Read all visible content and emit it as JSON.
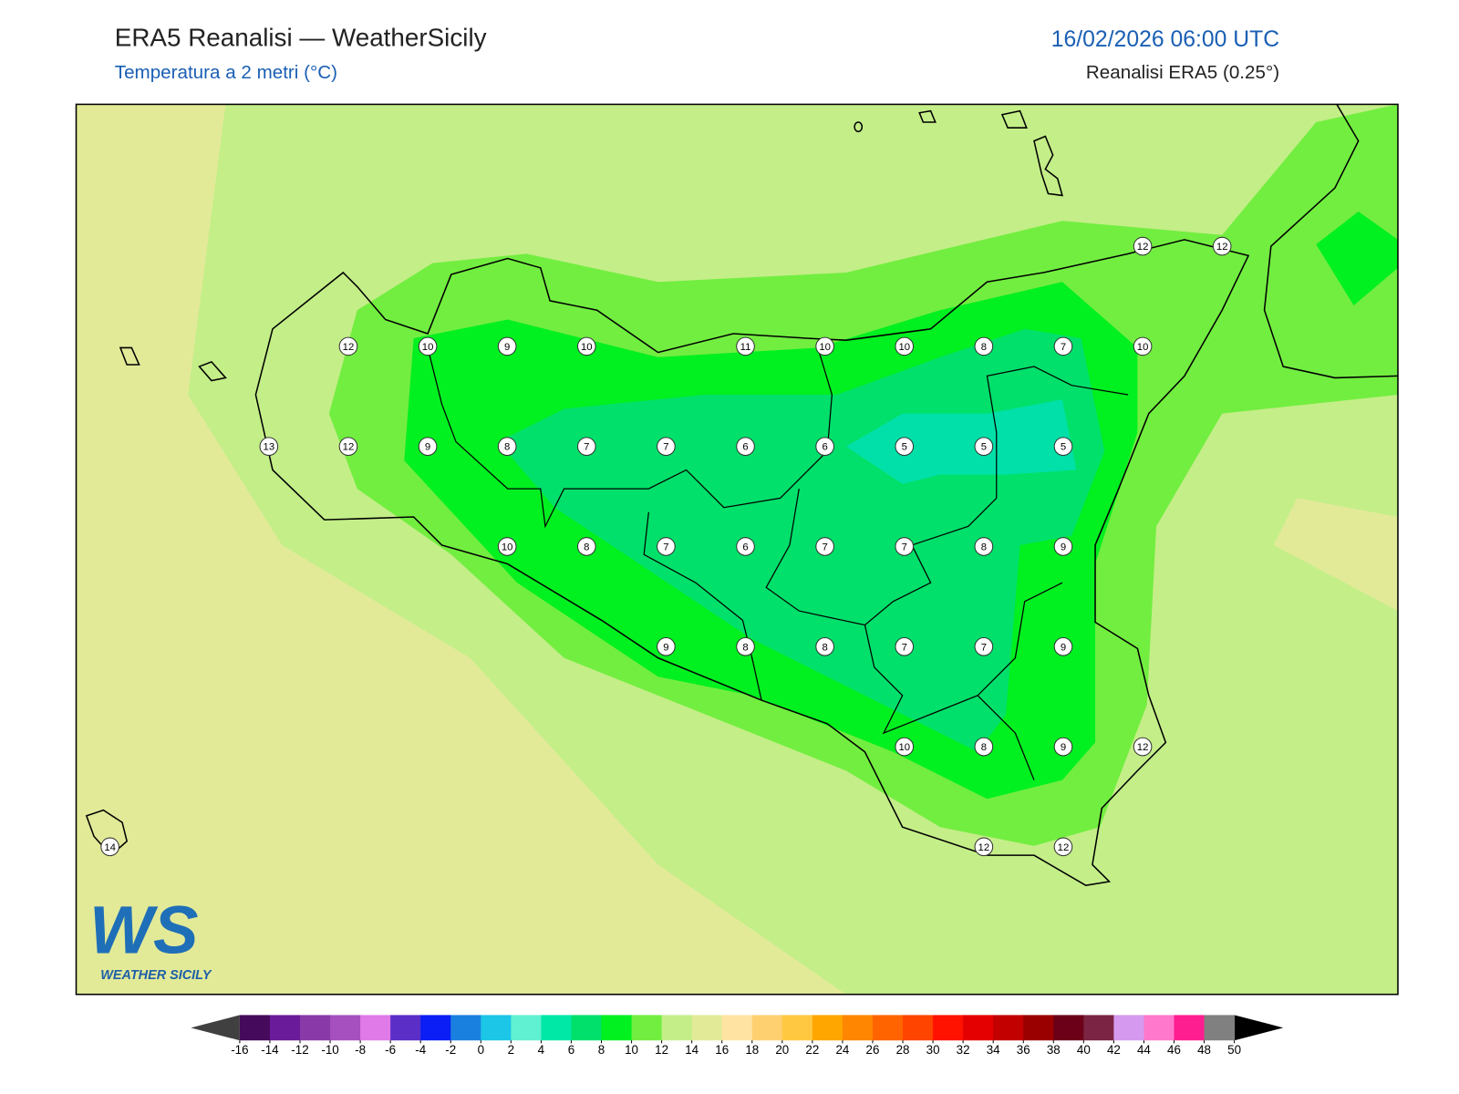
{
  "header": {
    "title": "ERA5 Reanalisi — WeatherSicily",
    "subtitle": "Temperatura a 2 metri (°C)",
    "datetime": "16/02/2026 06:00 UTC",
    "source": "Reanalisi ERA5 (0.25°)"
  },
  "stations": {
    "rows": [
      [
        null,
        null,
        null,
        null,
        null,
        null,
        null,
        null,
        null,
        null,
        null,
        null,
        null,
        12,
        12
      ],
      [
        null,
        null,
        null,
        12,
        10,
        9,
        10,
        null,
        11,
        10,
        10,
        8,
        7,
        10,
        null
      ],
      [
        null,
        null,
        13,
        12,
        9,
        8,
        7,
        7,
        6,
        6,
        5,
        5,
        5,
        null,
        null
      ],
      [
        null,
        null,
        null,
        null,
        null,
        10,
        8,
        7,
        6,
        7,
        7,
        8,
        9,
        null,
        null
      ],
      [
        null,
        null,
        null,
        null,
        null,
        null,
        null,
        9,
        8,
        8,
        7,
        7,
        9,
        null,
        null
      ],
      [
        null,
        null,
        null,
        null,
        null,
        null,
        null,
        null,
        null,
        null,
        10,
        8,
        9,
        12,
        null
      ],
      [
        14,
        null,
        null,
        null,
        null,
        null,
        null,
        null,
        null,
        null,
        null,
        12,
        12,
        null,
        null
      ]
    ]
  },
  "colorbar": {
    "ticks": [
      -16,
      -14,
      -12,
      -10,
      -8,
      -6,
      -4,
      -2,
      0,
      2,
      4,
      6,
      8,
      10,
      12,
      14,
      16,
      18,
      20,
      22,
      24,
      26,
      28,
      30,
      32,
      34,
      36,
      38,
      40,
      42,
      44,
      46,
      48,
      50
    ],
    "colors": [
      "#450a5c",
      "#6a1b9a",
      "#8a3aa8",
      "#a64fbf",
      "#e07ae8",
      "#5b2ec8",
      "#0a1ef5",
      "#1a80df",
      "#1cc6e6",
      "#60f0d2",
      "#00e8a6",
      "#00e06a",
      "#00f020",
      "#72ee40",
      "#c4ee88",
      "#e2ea98",
      "#ffe3a2",
      "#ffd070",
      "#ffc840",
      "#ffa600",
      "#ff8600",
      "#ff6400",
      "#ff4400",
      "#ff1200",
      "#e40000",
      "#c20000",
      "#9a0000",
      "#6c0018",
      "#7c2444",
      "#d59af0",
      "#ff78cc",
      "#ff1e90",
      "#808080",
      "#3a3a3a"
    ],
    "under_color": "#404040",
    "over_color": "#000000"
  },
  "logo": {
    "initials": "WS",
    "name": "WEATHER SICILY"
  }
}
